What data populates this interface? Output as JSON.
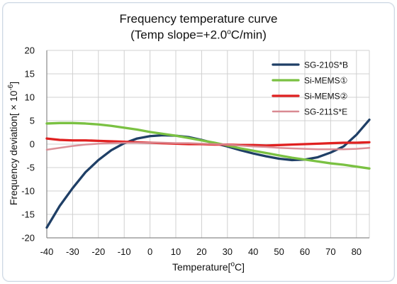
{
  "window": {
    "background": "#ffffff",
    "border_color": "#cfd8e3"
  },
  "chart": {
    "title_line_1": "Frequency temperature curve",
    "title_line_2_prefix": "(Temp slope=+2.0",
    "title_line_2_degree": "o",
    "title_line_2_suffix": "C/min)",
    "xlabel_prefix": "Temperature[",
    "xlabel_degree": "o",
    "xlabel_suffix": "C]",
    "ylabel_prefix": "Frequency deviation[ × 10",
    "ylabel_exponent": "-6",
    "ylabel_suffix": "]"
  },
  "chart_data": {
    "type": "line",
    "title": "Frequency temperature curve (Temp slope=+2.0oC/min)",
    "xlabel": "Temperature[oC]",
    "ylabel": "Frequency deviation[ × 10-6]",
    "xlim": [
      -40,
      85
    ],
    "ylim": [
      -20,
      20
    ],
    "xticks": [
      -40,
      -30,
      -20,
      -10,
      0,
      10,
      20,
      30,
      40,
      50,
      60,
      70,
      80
    ],
    "yticks": [
      -20,
      -15,
      -10,
      -5,
      0,
      5,
      10,
      15,
      20
    ],
    "x_tick_labels": [
      "-40",
      "-30",
      "-20",
      "-10",
      "0",
      "10",
      "20",
      "30",
      "40",
      "50",
      "60",
      "70",
      "80"
    ],
    "y_tick_labels": [
      "20",
      "15",
      "10",
      "5",
      "0",
      "-5",
      "-10",
      "-15",
      "-20"
    ],
    "grid": "vertical-and-horizontal",
    "legend_position": "top-right",
    "series": [
      {
        "name": "SG-210S*B",
        "color": "#1f3f66",
        "points": [
          [
            -40,
            -17.8
          ],
          [
            -35,
            -13.2
          ],
          [
            -30,
            -9.4
          ],
          [
            -25,
            -6.0
          ],
          [
            -20,
            -3.4
          ],
          [
            -15,
            -1.3
          ],
          [
            -10,
            0.2
          ],
          [
            -5,
            1.2
          ],
          [
            0,
            1.7
          ],
          [
            5,
            1.9
          ],
          [
            10,
            1.8
          ],
          [
            15,
            1.5
          ],
          [
            20,
            0.9
          ],
          [
            25,
            0.2
          ],
          [
            30,
            -0.5
          ],
          [
            35,
            -1.3
          ],
          [
            40,
            -2.0
          ],
          [
            45,
            -2.6
          ],
          [
            50,
            -3.1
          ],
          [
            55,
            -3.4
          ],
          [
            60,
            -3.3
          ],
          [
            65,
            -2.8
          ],
          [
            70,
            -1.8
          ],
          [
            75,
            -0.5
          ],
          [
            80,
            2.0
          ],
          [
            85,
            5.2
          ]
        ]
      },
      {
        "name": "Si-MEMS①",
        "color": "#7ac142",
        "points": [
          [
            -40,
            4.4
          ],
          [
            -35,
            4.5
          ],
          [
            -30,
            4.5
          ],
          [
            -25,
            4.4
          ],
          [
            -20,
            4.2
          ],
          [
            -15,
            3.9
          ],
          [
            -10,
            3.5
          ],
          [
            -5,
            3.1
          ],
          [
            0,
            2.6
          ],
          [
            5,
            2.2
          ],
          [
            10,
            1.8
          ],
          [
            15,
            1.3
          ],
          [
            20,
            0.8
          ],
          [
            25,
            0.3
          ],
          [
            30,
            -0.3
          ],
          [
            35,
            -0.9
          ],
          [
            40,
            -1.4
          ],
          [
            45,
            -1.9
          ],
          [
            50,
            -2.4
          ],
          [
            55,
            -2.9
          ],
          [
            60,
            -3.3
          ],
          [
            65,
            -3.7
          ],
          [
            70,
            -4.1
          ],
          [
            75,
            -4.4
          ],
          [
            80,
            -4.8
          ],
          [
            85,
            -5.2
          ]
        ]
      },
      {
        "name": "Si-MEMS②",
        "color": "#e02020",
        "points": [
          [
            -40,
            1.2
          ],
          [
            -35,
            0.9
          ],
          [
            -30,
            0.8
          ],
          [
            -25,
            0.8
          ],
          [
            -20,
            0.7
          ],
          [
            -15,
            0.6
          ],
          [
            -10,
            0.5
          ],
          [
            -5,
            0.4
          ],
          [
            0,
            0.3
          ],
          [
            5,
            0.2
          ],
          [
            10,
            0.1
          ],
          [
            15,
            0.0
          ],
          [
            20,
            0.0
          ],
          [
            25,
            -0.1
          ],
          [
            30,
            -0.1
          ],
          [
            35,
            -0.2
          ],
          [
            40,
            -0.2
          ],
          [
            45,
            -0.3
          ],
          [
            50,
            -0.2
          ],
          [
            55,
            -0.1
          ],
          [
            60,
            0.0
          ],
          [
            65,
            0.1
          ],
          [
            70,
            0.2
          ],
          [
            75,
            0.3
          ],
          [
            80,
            0.3
          ],
          [
            85,
            0.4
          ]
        ]
      },
      {
        "name": "SG-211S*E",
        "color": "#d98a92",
        "points": [
          [
            -40,
            -1.2
          ],
          [
            -35,
            -0.8
          ],
          [
            -30,
            -0.4
          ],
          [
            -25,
            -0.1
          ],
          [
            -20,
            0.1
          ],
          [
            -15,
            0.2
          ],
          [
            -10,
            0.3
          ],
          [
            -5,
            0.3
          ],
          [
            0,
            0.3
          ],
          [
            5,
            0.3
          ],
          [
            10,
            0.2
          ],
          [
            15,
            0.2
          ],
          [
            20,
            0.1
          ],
          [
            25,
            0.0
          ],
          [
            30,
            -0.1
          ],
          [
            35,
            -0.3
          ],
          [
            40,
            -0.5
          ],
          [
            45,
            -0.6
          ],
          [
            50,
            -0.8
          ],
          [
            55,
            -0.9
          ],
          [
            60,
            -1.0
          ],
          [
            65,
            -1.1
          ],
          [
            70,
            -1.1
          ],
          [
            75,
            -1.1
          ],
          [
            80,
            -1.0
          ],
          [
            85,
            -0.8
          ]
        ]
      }
    ]
  }
}
